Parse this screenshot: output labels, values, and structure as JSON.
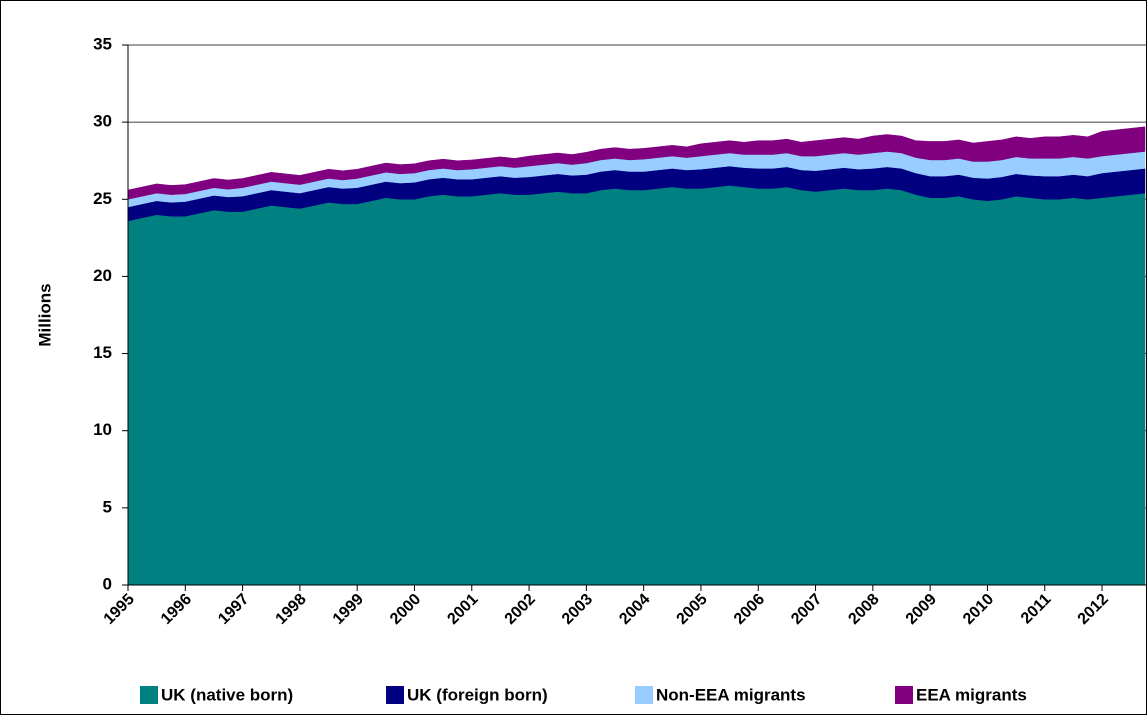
{
  "chart_data": {
    "type": "stacked-area",
    "ylabel": "Millions",
    "categories": [
      "1995",
      null,
      null,
      null,
      "1996",
      null,
      null,
      null,
      "1997",
      null,
      null,
      null,
      "1998",
      null,
      null,
      null,
      "1999",
      null,
      null,
      null,
      "2000",
      null,
      null,
      null,
      "2001",
      null,
      null,
      null,
      "2002",
      null,
      null,
      null,
      "2003",
      null,
      null,
      null,
      "2004",
      null,
      null,
      null,
      "2005",
      null,
      null,
      null,
      "2006",
      null,
      null,
      null,
      "2007",
      null,
      null,
      null,
      "2008",
      null,
      null,
      null,
      "2009",
      null,
      null,
      null,
      "2010",
      null,
      null,
      null,
      "2011",
      null,
      null,
      null,
      "2012",
      null,
      null,
      null
    ],
    "series": [
      {
        "name": "UK (native born)",
        "color": "#008080",
        "values": [
          23.6,
          23.8,
          24.0,
          23.9,
          23.9,
          24.1,
          24.3,
          24.2,
          24.2,
          24.4,
          24.6,
          24.5,
          24.4,
          24.6,
          24.8,
          24.7,
          24.7,
          24.9,
          25.1,
          25.0,
          25.0,
          25.2,
          25.3,
          25.2,
          25.2,
          25.3,
          25.4,
          25.3,
          25.3,
          25.4,
          25.5,
          25.4,
          25.4,
          25.6,
          25.7,
          25.6,
          25.6,
          25.7,
          25.8,
          25.7,
          25.7,
          25.8,
          25.9,
          25.8,
          25.7,
          25.7,
          25.8,
          25.6,
          25.5,
          25.6,
          25.7,
          25.6,
          25.6,
          25.7,
          25.6,
          25.3,
          25.1,
          25.1,
          25.2,
          25.0,
          24.9,
          25.0,
          25.2,
          25.1,
          25.0,
          25.0,
          25.1,
          25.0,
          25.1,
          25.2,
          25.3,
          25.4
        ]
      },
      {
        "name": "UK (foreign born)",
        "color": "#000080",
        "values": [
          0.9,
          0.9,
          0.9,
          0.9,
          0.95,
          0.95,
          0.95,
          0.95,
          1.0,
          1.0,
          1.0,
          1.0,
          1.0,
          1.0,
          1.0,
          1.0,
          1.05,
          1.05,
          1.05,
          1.05,
          1.1,
          1.1,
          1.1,
          1.1,
          1.1,
          1.1,
          1.1,
          1.1,
          1.15,
          1.15,
          1.15,
          1.15,
          1.2,
          1.2,
          1.2,
          1.2,
          1.2,
          1.2,
          1.2,
          1.2,
          1.25,
          1.25,
          1.25,
          1.25,
          1.3,
          1.3,
          1.3,
          1.3,
          1.35,
          1.35,
          1.35,
          1.35,
          1.4,
          1.4,
          1.4,
          1.4,
          1.4,
          1.4,
          1.4,
          1.4,
          1.45,
          1.45,
          1.45,
          1.45,
          1.5,
          1.5,
          1.5,
          1.5,
          1.6,
          1.6,
          1.6,
          1.6
        ]
      },
      {
        "name": "Non-EEA migrants",
        "color": "#99ccff",
        "values": [
          0.5,
          0.5,
          0.5,
          0.5,
          0.5,
          0.5,
          0.5,
          0.5,
          0.55,
          0.55,
          0.55,
          0.55,
          0.55,
          0.55,
          0.55,
          0.55,
          0.6,
          0.6,
          0.6,
          0.6,
          0.6,
          0.6,
          0.6,
          0.6,
          0.65,
          0.65,
          0.65,
          0.65,
          0.7,
          0.7,
          0.7,
          0.7,
          0.75,
          0.75,
          0.75,
          0.75,
          0.8,
          0.8,
          0.8,
          0.8,
          0.85,
          0.85,
          0.85,
          0.85,
          0.9,
          0.9,
          0.9,
          0.9,
          0.95,
          0.95,
          0.95,
          0.95,
          1.0,
          1.0,
          1.0,
          1.0,
          1.05,
          1.05,
          1.05,
          1.05,
          1.1,
          1.1,
          1.1,
          1.1,
          1.15,
          1.15,
          1.15,
          1.15,
          1.1,
          1.1,
          1.1,
          1.1
        ]
      },
      {
        "name": "EEA migrants",
        "color": "#800080",
        "values": [
          0.6,
          0.6,
          0.6,
          0.6,
          0.6,
          0.6,
          0.6,
          0.6,
          0.6,
          0.6,
          0.6,
          0.6,
          0.6,
          0.6,
          0.6,
          0.6,
          0.6,
          0.6,
          0.6,
          0.6,
          0.6,
          0.6,
          0.6,
          0.6,
          0.6,
          0.6,
          0.6,
          0.6,
          0.65,
          0.65,
          0.65,
          0.65,
          0.7,
          0.7,
          0.7,
          0.7,
          0.7,
          0.7,
          0.7,
          0.7,
          0.8,
          0.8,
          0.8,
          0.8,
          0.9,
          0.9,
          0.9,
          0.9,
          1.0,
          1.0,
          1.0,
          1.0,
          1.1,
          1.1,
          1.1,
          1.1,
          1.2,
          1.2,
          1.2,
          1.2,
          1.3,
          1.3,
          1.3,
          1.3,
          1.4,
          1.4,
          1.4,
          1.4,
          1.6,
          1.6,
          1.6,
          1.6
        ]
      }
    ],
    "ylim": [
      0,
      35
    ],
    "yticks": [
      0,
      5,
      10,
      15,
      20,
      25,
      30,
      35
    ],
    "grid": true,
    "legend": "bottom"
  }
}
